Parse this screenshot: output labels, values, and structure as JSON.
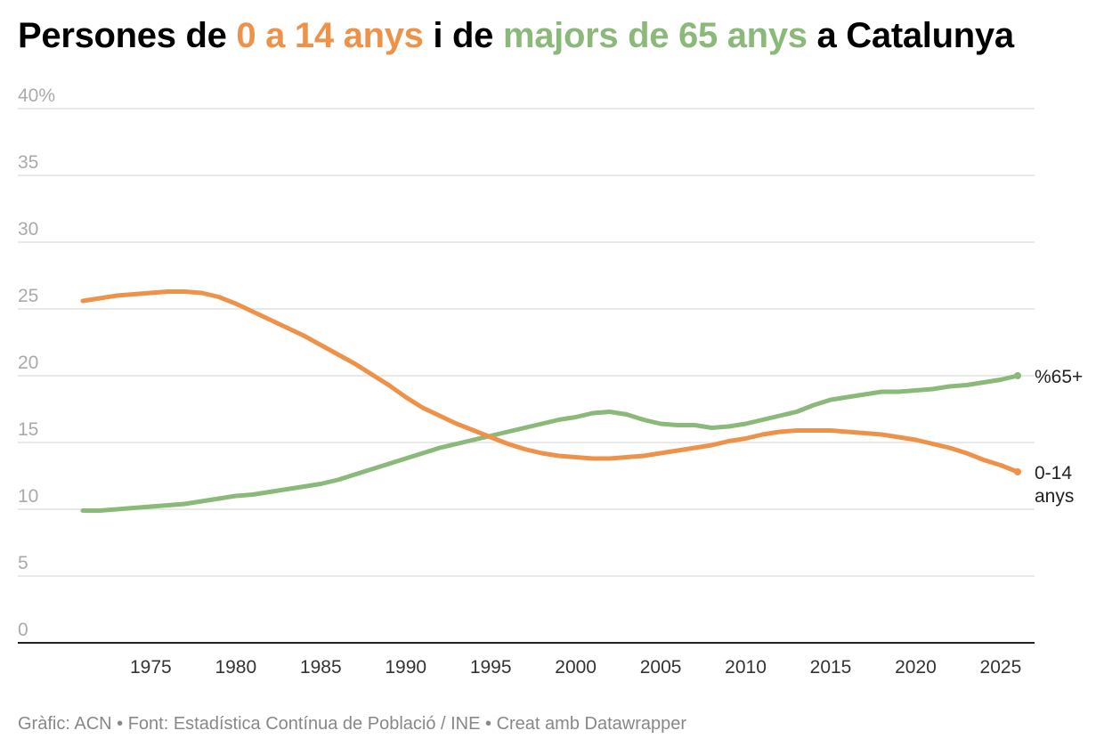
{
  "title": {
    "part1": "Persones de ",
    "highlight1": "0 a 14 anys",
    "part2": " i de ",
    "highlight2": "majors de 65 anys",
    "part3": " a Catalunya"
  },
  "colors": {
    "young": "#ef9249",
    "old": "#8ab979",
    "grid": "#e2e2e2",
    "axis": "#222222"
  },
  "footer": "Gràfic: ACN • Font: Estadística Contínua de Població / INE • Creat amb Datawrapper",
  "chart_data": {
    "type": "line",
    "title": "Persones de 0 a 14 anys i de majors de 65 anys a Catalunya",
    "xlabel": "",
    "ylabel": "",
    "xlim": [
      1970,
      2027
    ],
    "ylim": [
      0,
      40
    ],
    "grid": true,
    "yticks": [
      {
        "value": 0,
        "label": "0"
      },
      {
        "value": 5,
        "label": "5"
      },
      {
        "value": 10,
        "label": "10"
      },
      {
        "value": 15,
        "label": "15"
      },
      {
        "value": 20,
        "label": "20"
      },
      {
        "value": 25,
        "label": "25"
      },
      {
        "value": 30,
        "label": "30"
      },
      {
        "value": 35,
        "label": "35"
      },
      {
        "value": 40,
        "label": "40%"
      }
    ],
    "xticks": [
      1975,
      1980,
      1985,
      1990,
      1995,
      2000,
      2005,
      2010,
      2015,
      2020,
      2025
    ],
    "series": [
      {
        "name": "%65+",
        "key": "old",
        "x": [
          1971,
          1972,
          1973,
          1974,
          1975,
          1976,
          1977,
          1978,
          1979,
          1980,
          1981,
          1982,
          1983,
          1984,
          1985,
          1986,
          1987,
          1988,
          1989,
          1990,
          1991,
          1992,
          1993,
          1994,
          1995,
          1996,
          1997,
          1998,
          1999,
          2000,
          2001,
          2002,
          2003,
          2004,
          2005,
          2006,
          2007,
          2008,
          2009,
          2010,
          2011,
          2012,
          2013,
          2014,
          2015,
          2016,
          2017,
          2018,
          2019,
          2020,
          2021,
          2022,
          2023,
          2024,
          2025,
          2026
        ],
        "values": [
          9.9,
          9.9,
          10.0,
          10.1,
          10.2,
          10.3,
          10.4,
          10.6,
          10.8,
          11.0,
          11.1,
          11.3,
          11.5,
          11.7,
          11.9,
          12.2,
          12.6,
          13.0,
          13.4,
          13.8,
          14.2,
          14.6,
          14.9,
          15.2,
          15.5,
          15.8,
          16.1,
          16.4,
          16.7,
          16.9,
          17.2,
          17.3,
          17.1,
          16.7,
          16.4,
          16.3,
          16.3,
          16.1,
          16.2,
          16.4,
          16.7,
          17.0,
          17.3,
          17.8,
          18.2,
          18.4,
          18.6,
          18.8,
          18.8,
          18.9,
          19.0,
          19.2,
          19.3,
          19.5,
          19.7,
          20.0
        ]
      },
      {
        "name": "0-14 anys",
        "key": "young",
        "x": [
          1971,
          1972,
          1973,
          1974,
          1975,
          1976,
          1977,
          1978,
          1979,
          1980,
          1981,
          1982,
          1983,
          1984,
          1985,
          1986,
          1987,
          1988,
          1989,
          1990,
          1991,
          1992,
          1993,
          1994,
          1995,
          1996,
          1997,
          1998,
          1999,
          2000,
          2001,
          2002,
          2003,
          2004,
          2005,
          2006,
          2007,
          2008,
          2009,
          2010,
          2011,
          2012,
          2013,
          2014,
          2015,
          2016,
          2017,
          2018,
          2019,
          2020,
          2021,
          2022,
          2023,
          2024,
          2025,
          2026
        ],
        "values": [
          25.6,
          25.8,
          26.0,
          26.1,
          26.2,
          26.3,
          26.3,
          26.2,
          25.9,
          25.4,
          24.8,
          24.2,
          23.6,
          23.0,
          22.3,
          21.6,
          20.9,
          20.1,
          19.3,
          18.4,
          17.6,
          17.0,
          16.4,
          15.9,
          15.4,
          14.9,
          14.5,
          14.2,
          14.0,
          13.9,
          13.8,
          13.8,
          13.9,
          14.0,
          14.2,
          14.4,
          14.6,
          14.8,
          15.1,
          15.3,
          15.6,
          15.8,
          15.9,
          15.9,
          15.9,
          15.8,
          15.7,
          15.6,
          15.4,
          15.2,
          14.9,
          14.6,
          14.2,
          13.7,
          13.3,
          12.8
        ]
      }
    ],
    "end_labels": [
      {
        "key": "old",
        "lines": [
          "%65+"
        ]
      },
      {
        "key": "young",
        "lines": [
          "0-14",
          "anys"
        ]
      }
    ]
  }
}
